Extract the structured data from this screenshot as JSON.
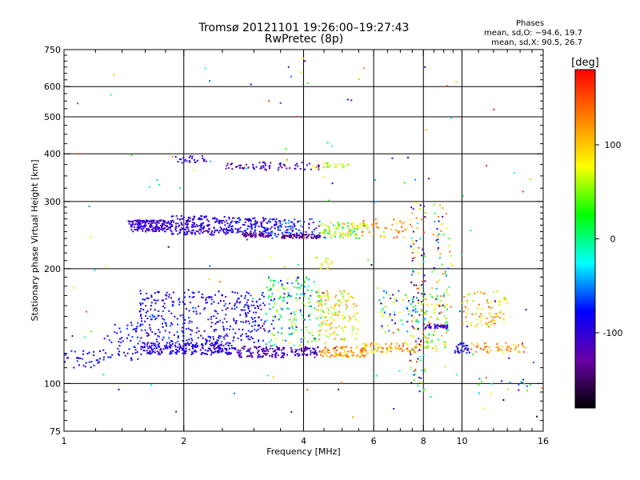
{
  "title": "Tromsø 20121101 19:26:00–19:27:43",
  "subtitle": "RwPretec (8p)",
  "stats": {
    "heading": "Phases",
    "o_line": "mean, sd,O: −94.6, 19.7",
    "x_line": "mean, sd,X:  90.5, 26.7"
  },
  "chart_data": {
    "type": "scatter",
    "xlabel": "Frequency [MHz]",
    "ylabel": "Stationary phase Virtual Height [km]",
    "x_scale": "log",
    "y_scale": "log",
    "xlim": [
      1,
      16
    ],
    "ylim": [
      75,
      750
    ],
    "grid": true,
    "x_ticks": [
      1,
      2,
      4,
      6,
      8,
      10,
      16
    ],
    "x_minor_ticks": [
      1.2,
      1.4,
      1.6,
      1.8,
      2.5,
      3,
      3.5,
      4.5,
      5,
      5.5,
      6.5,
      7,
      7.5,
      8.5,
      9,
      9.5,
      11,
      12,
      13,
      14,
      15
    ],
    "y_ticks": [
      75,
      100,
      200,
      300,
      400,
      500,
      600,
      750
    ],
    "y_minor_ticks": [
      80,
      85,
      90,
      95,
      110,
      120,
      130,
      140,
      150,
      160,
      170,
      180,
      190,
      210,
      220,
      230,
      240,
      250,
      260,
      270,
      280,
      290,
      325,
      350,
      375,
      425,
      450,
      475,
      525,
      550,
      575,
      625,
      650,
      675,
      700,
      725
    ],
    "x_gridlines": [
      2,
      4,
      6,
      8,
      10
    ],
    "y_gridlines": [
      100,
      200,
      300,
      400,
      500,
      600
    ],
    "colorbar": {
      "label": "[deg]",
      "range": [
        -180,
        180
      ],
      "ticks": [
        100,
        0,
        -100
      ],
      "colors": [
        "#000000",
        "#6a00a8",
        "#0000ff",
        "#00ffff",
        "#00ff00",
        "#ffff00",
        "#ff8000",
        "#ff0000"
      ]
    },
    "clusters": [
      {
        "x": [
          1.45,
          1.85
        ],
        "y": [
          250,
          268
        ],
        "phase": [
          -125,
          -85
        ],
        "n": 180
      },
      {
        "x": [
          1.85,
          2.6
        ],
        "y": [
          245,
          275
        ],
        "phase": [
          -120,
          -75
        ],
        "n": 200
      },
      {
        "x": [
          2.6,
          3.3
        ],
        "y": [
          248,
          272
        ],
        "phase": [
          -120,
          -60
        ],
        "n": 110
      },
      {
        "x": [
          2.8,
          3.3
        ],
        "y": [
          242,
          248
        ],
        "phase": [
          -150,
          -120
        ],
        "n": 60
      },
      {
        "x": [
          3.3,
          4.4
        ],
        "y": [
          240,
          270
        ],
        "phase": [
          -125,
          -40
        ],
        "n": 110
      },
      {
        "x": [
          3.5,
          4.4
        ],
        "y": [
          240,
          246
        ],
        "phase": [
          -160,
          -110
        ],
        "n": 70
      },
      {
        "x": [
          4.4,
          5.8
        ],
        "y": [
          240,
          265
        ],
        "phase": [
          0,
          120
        ],
        "n": 90
      },
      {
        "x": [
          5.6,
          7.5
        ],
        "y": [
          240,
          270
        ],
        "phase": [
          60,
          160
        ],
        "n": 50
      },
      {
        "x": [
          1.9,
          2.3
        ],
        "y": [
          378,
          395
        ],
        "phase": [
          -120,
          -80
        ],
        "n": 25
      },
      {
        "x": [
          2.5,
          4.4
        ],
        "y": [
          362,
          380
        ],
        "phase": [
          -140,
          -90
        ],
        "n": 70
      },
      {
        "x": [
          4.2,
          5.2
        ],
        "y": [
          365,
          378
        ],
        "phase": [
          30,
          110
        ],
        "n": 25
      },
      {
        "x": [
          1.0,
          1.25
        ],
        "y": [
          110,
          122
        ],
        "phase": [
          -110,
          -60
        ],
        "n": 35
      },
      {
        "x": [
          1.25,
          1.55
        ],
        "y": [
          115,
          145
        ],
        "phase": [
          -110,
          -60
        ],
        "n": 60
      },
      {
        "x": [
          1.55,
          2.7
        ],
        "y": [
          119,
          128
        ],
        "phase": [
          -120,
          -70
        ],
        "n": 260
      },
      {
        "x": [
          1.55,
          3.2
        ],
        "y": [
          128,
          175
        ],
        "phase": [
          -120,
          -60
        ],
        "n": 380
      },
      {
        "x": [
          2.7,
          4.4
        ],
        "y": [
          117,
          125
        ],
        "phase": [
          -150,
          -90
        ],
        "n": 160
      },
      {
        "x": [
          3.2,
          4.5
        ],
        "y": [
          125,
          190
        ],
        "phase": [
          -110,
          80
        ],
        "n": 180
      },
      {
        "x": [
          4.4,
          5.8
        ],
        "y": [
          117,
          125
        ],
        "phase": [
          80,
          150
        ],
        "n": 100
      },
      {
        "x": [
          4.3,
          5.5
        ],
        "y": [
          130,
          175
        ],
        "phase": [
          40,
          130
        ],
        "n": 130
      },
      {
        "x": [
          4.3,
          4.8
        ],
        "y": [
          200,
          215
        ],
        "phase": [
          50,
          110
        ],
        "n": 15
      },
      {
        "x": [
          5.6,
          8.0
        ],
        "y": [
          120,
          128
        ],
        "phase": [
          60,
          160
        ],
        "n": 80
      },
      {
        "x": [
          6.2,
          7.8
        ],
        "y": [
          135,
          175
        ],
        "phase": [
          -100,
          150
        ],
        "n": 60
      },
      {
        "x": [
          7.4,
          8.1
        ],
        "y": [
          95,
          300
        ],
        "phase": [
          -170,
          170
        ],
        "n": 120
      },
      {
        "x": [
          8.0,
          9.2
        ],
        "y": [
          120,
          175
        ],
        "phase": [
          20,
          130
        ],
        "n": 70
      },
      {
        "x": [
          8.0,
          9.2
        ],
        "y": [
          139,
          143
        ],
        "phase": [
          -130,
          -90
        ],
        "n": 40
      },
      {
        "x": [
          8.4,
          9.4
        ],
        "y": [
          150,
          300
        ],
        "phase": [
          -120,
          150
        ],
        "n": 60
      },
      {
        "x": [
          9.5,
          10.5
        ],
        "y": [
          120,
          128
        ],
        "phase": [
          -120,
          -60
        ],
        "n": 30
      },
      {
        "x": [
          10.0,
          13.0
        ],
        "y": [
          140,
          175
        ],
        "phase": [
          50,
          150
        ],
        "n": 80
      },
      {
        "x": [
          10.5,
          14.5
        ],
        "y": [
          120,
          128
        ],
        "phase": [
          80,
          160
        ],
        "n": 50
      },
      {
        "x": [
          11.0,
          15.0
        ],
        "y": [
          92,
          103
        ],
        "phase": [
          -100,
          170
        ],
        "n": 20
      },
      {
        "x": [
          1.0,
          16.0
        ],
        "y": [
          80,
          720
        ],
        "phase": [
          -170,
          170
        ],
        "n": 130
      }
    ]
  }
}
